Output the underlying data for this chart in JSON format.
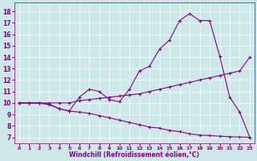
{
  "xlabel": "Windchill (Refroidissement éolien,°C)",
  "background_color": "#cce8e8",
  "line_color": "#880088",
  "xlim": [
    -0.5,
    23.5
  ],
  "ylim": [
    6.5,
    18.8
  ],
  "xticks": [
    0,
    1,
    2,
    3,
    4,
    5,
    6,
    7,
    8,
    9,
    10,
    11,
    12,
    13,
    14,
    15,
    16,
    17,
    18,
    19,
    20,
    21,
    22,
    23
  ],
  "yticks": [
    7,
    8,
    9,
    10,
    11,
    12,
    13,
    14,
    15,
    16,
    17,
    18
  ],
  "line1_x": [
    0,
    1,
    2,
    3,
    4,
    5,
    6,
    7,
    8,
    9,
    10,
    11,
    12,
    13,
    14,
    15,
    16,
    17,
    18,
    19,
    20,
    21,
    22,
    23
  ],
  "line1_y": [
    10.0,
    10.0,
    10.0,
    9.9,
    9.5,
    9.3,
    10.5,
    11.2,
    11.0,
    10.3,
    10.1,
    11.2,
    12.8,
    13.2,
    14.7,
    15.5,
    17.2,
    17.8,
    17.2,
    17.2,
    14.1,
    10.5,
    9.2,
    7.0
  ],
  "line2_x": [
    0,
    1,
    2,
    3,
    4,
    5,
    6,
    7,
    8,
    9,
    10,
    11,
    12,
    13,
    14,
    15,
    16,
    17,
    18,
    19,
    20,
    21,
    22,
    23
  ],
  "line2_y": [
    10.0,
    10.0,
    10.0,
    10.0,
    10.0,
    10.0,
    10.2,
    10.3,
    10.4,
    10.5,
    10.6,
    10.7,
    10.8,
    11.0,
    11.2,
    11.4,
    11.6,
    11.8,
    12.0,
    12.2,
    12.4,
    12.6,
    12.8,
    14.0
  ],
  "line3_x": [
    0,
    1,
    2,
    3,
    4,
    5,
    6,
    7,
    8,
    9,
    10,
    11,
    12,
    13,
    14,
    15,
    16,
    17,
    18,
    19,
    20,
    21,
    22,
    23
  ],
  "line3_y": [
    10.0,
    10.0,
    10.0,
    9.85,
    9.5,
    9.3,
    9.2,
    9.1,
    8.9,
    8.7,
    8.5,
    8.3,
    8.1,
    7.9,
    7.8,
    7.6,
    7.5,
    7.3,
    7.2,
    7.15,
    7.1,
    7.05,
    7.02,
    7.0
  ]
}
